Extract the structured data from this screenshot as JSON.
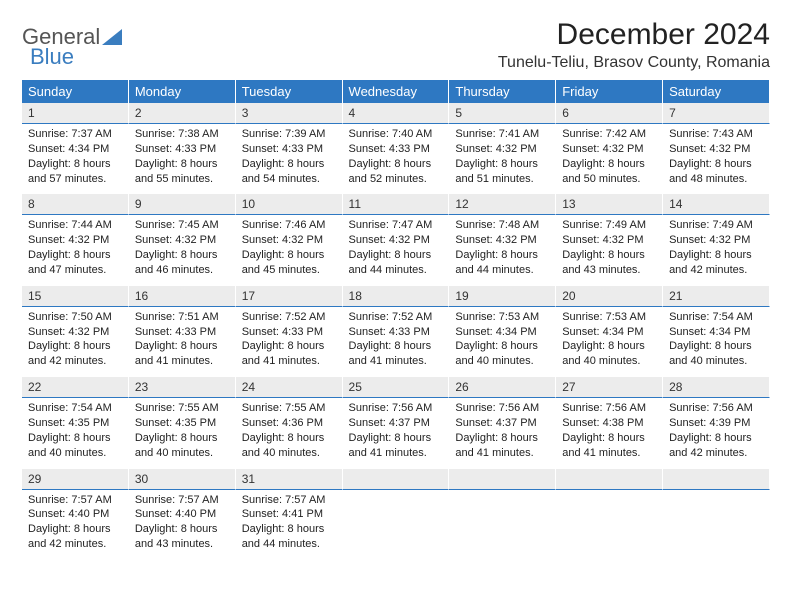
{
  "logo_part1": "General",
  "logo_part2": "Blue",
  "title": "December 2024",
  "location": "Tunelu-Teliu, Brasov County, Romania",
  "colors": {
    "header_bg": "#2e78c2",
    "header_text": "#ffffff",
    "daynum_bg": "#ececec",
    "border": "#2e78c2",
    "logo_blue": "#3a7dbf"
  },
  "weekdays": [
    "Sunday",
    "Monday",
    "Tuesday",
    "Wednesday",
    "Thursday",
    "Friday",
    "Saturday"
  ],
  "days": [
    {
      "n": "1",
      "sunrise": "7:37 AM",
      "sunset": "4:34 PM",
      "daylight": "8 hours and 57 minutes."
    },
    {
      "n": "2",
      "sunrise": "7:38 AM",
      "sunset": "4:33 PM",
      "daylight": "8 hours and 55 minutes."
    },
    {
      "n": "3",
      "sunrise": "7:39 AM",
      "sunset": "4:33 PM",
      "daylight": "8 hours and 54 minutes."
    },
    {
      "n": "4",
      "sunrise": "7:40 AM",
      "sunset": "4:33 PM",
      "daylight": "8 hours and 52 minutes."
    },
    {
      "n": "5",
      "sunrise": "7:41 AM",
      "sunset": "4:32 PM",
      "daylight": "8 hours and 51 minutes."
    },
    {
      "n": "6",
      "sunrise": "7:42 AM",
      "sunset": "4:32 PM",
      "daylight": "8 hours and 50 minutes."
    },
    {
      "n": "7",
      "sunrise": "7:43 AM",
      "sunset": "4:32 PM",
      "daylight": "8 hours and 48 minutes."
    },
    {
      "n": "8",
      "sunrise": "7:44 AM",
      "sunset": "4:32 PM",
      "daylight": "8 hours and 47 minutes."
    },
    {
      "n": "9",
      "sunrise": "7:45 AM",
      "sunset": "4:32 PM",
      "daylight": "8 hours and 46 minutes."
    },
    {
      "n": "10",
      "sunrise": "7:46 AM",
      "sunset": "4:32 PM",
      "daylight": "8 hours and 45 minutes."
    },
    {
      "n": "11",
      "sunrise": "7:47 AM",
      "sunset": "4:32 PM",
      "daylight": "8 hours and 44 minutes."
    },
    {
      "n": "12",
      "sunrise": "7:48 AM",
      "sunset": "4:32 PM",
      "daylight": "8 hours and 44 minutes."
    },
    {
      "n": "13",
      "sunrise": "7:49 AM",
      "sunset": "4:32 PM",
      "daylight": "8 hours and 43 minutes."
    },
    {
      "n": "14",
      "sunrise": "7:49 AM",
      "sunset": "4:32 PM",
      "daylight": "8 hours and 42 minutes."
    },
    {
      "n": "15",
      "sunrise": "7:50 AM",
      "sunset": "4:32 PM",
      "daylight": "8 hours and 42 minutes."
    },
    {
      "n": "16",
      "sunrise": "7:51 AM",
      "sunset": "4:33 PM",
      "daylight": "8 hours and 41 minutes."
    },
    {
      "n": "17",
      "sunrise": "7:52 AM",
      "sunset": "4:33 PM",
      "daylight": "8 hours and 41 minutes."
    },
    {
      "n": "18",
      "sunrise": "7:52 AM",
      "sunset": "4:33 PM",
      "daylight": "8 hours and 41 minutes."
    },
    {
      "n": "19",
      "sunrise": "7:53 AM",
      "sunset": "4:34 PM",
      "daylight": "8 hours and 40 minutes."
    },
    {
      "n": "20",
      "sunrise": "7:53 AM",
      "sunset": "4:34 PM",
      "daylight": "8 hours and 40 minutes."
    },
    {
      "n": "21",
      "sunrise": "7:54 AM",
      "sunset": "4:34 PM",
      "daylight": "8 hours and 40 minutes."
    },
    {
      "n": "22",
      "sunrise": "7:54 AM",
      "sunset": "4:35 PM",
      "daylight": "8 hours and 40 minutes."
    },
    {
      "n": "23",
      "sunrise": "7:55 AM",
      "sunset": "4:35 PM",
      "daylight": "8 hours and 40 minutes."
    },
    {
      "n": "24",
      "sunrise": "7:55 AM",
      "sunset": "4:36 PM",
      "daylight": "8 hours and 40 minutes."
    },
    {
      "n": "25",
      "sunrise": "7:56 AM",
      "sunset": "4:37 PM",
      "daylight": "8 hours and 41 minutes."
    },
    {
      "n": "26",
      "sunrise": "7:56 AM",
      "sunset": "4:37 PM",
      "daylight": "8 hours and 41 minutes."
    },
    {
      "n": "27",
      "sunrise": "7:56 AM",
      "sunset": "4:38 PM",
      "daylight": "8 hours and 41 minutes."
    },
    {
      "n": "28",
      "sunrise": "7:56 AM",
      "sunset": "4:39 PM",
      "daylight": "8 hours and 42 minutes."
    },
    {
      "n": "29",
      "sunrise": "7:57 AM",
      "sunset": "4:40 PM",
      "daylight": "8 hours and 42 minutes."
    },
    {
      "n": "30",
      "sunrise": "7:57 AM",
      "sunset": "4:40 PM",
      "daylight": "8 hours and 43 minutes."
    },
    {
      "n": "31",
      "sunrise": "7:57 AM",
      "sunset": "4:41 PM",
      "daylight": "8 hours and 44 minutes."
    }
  ],
  "labels": {
    "sunrise": "Sunrise:",
    "sunset": "Sunset:",
    "daylight": "Daylight:"
  }
}
